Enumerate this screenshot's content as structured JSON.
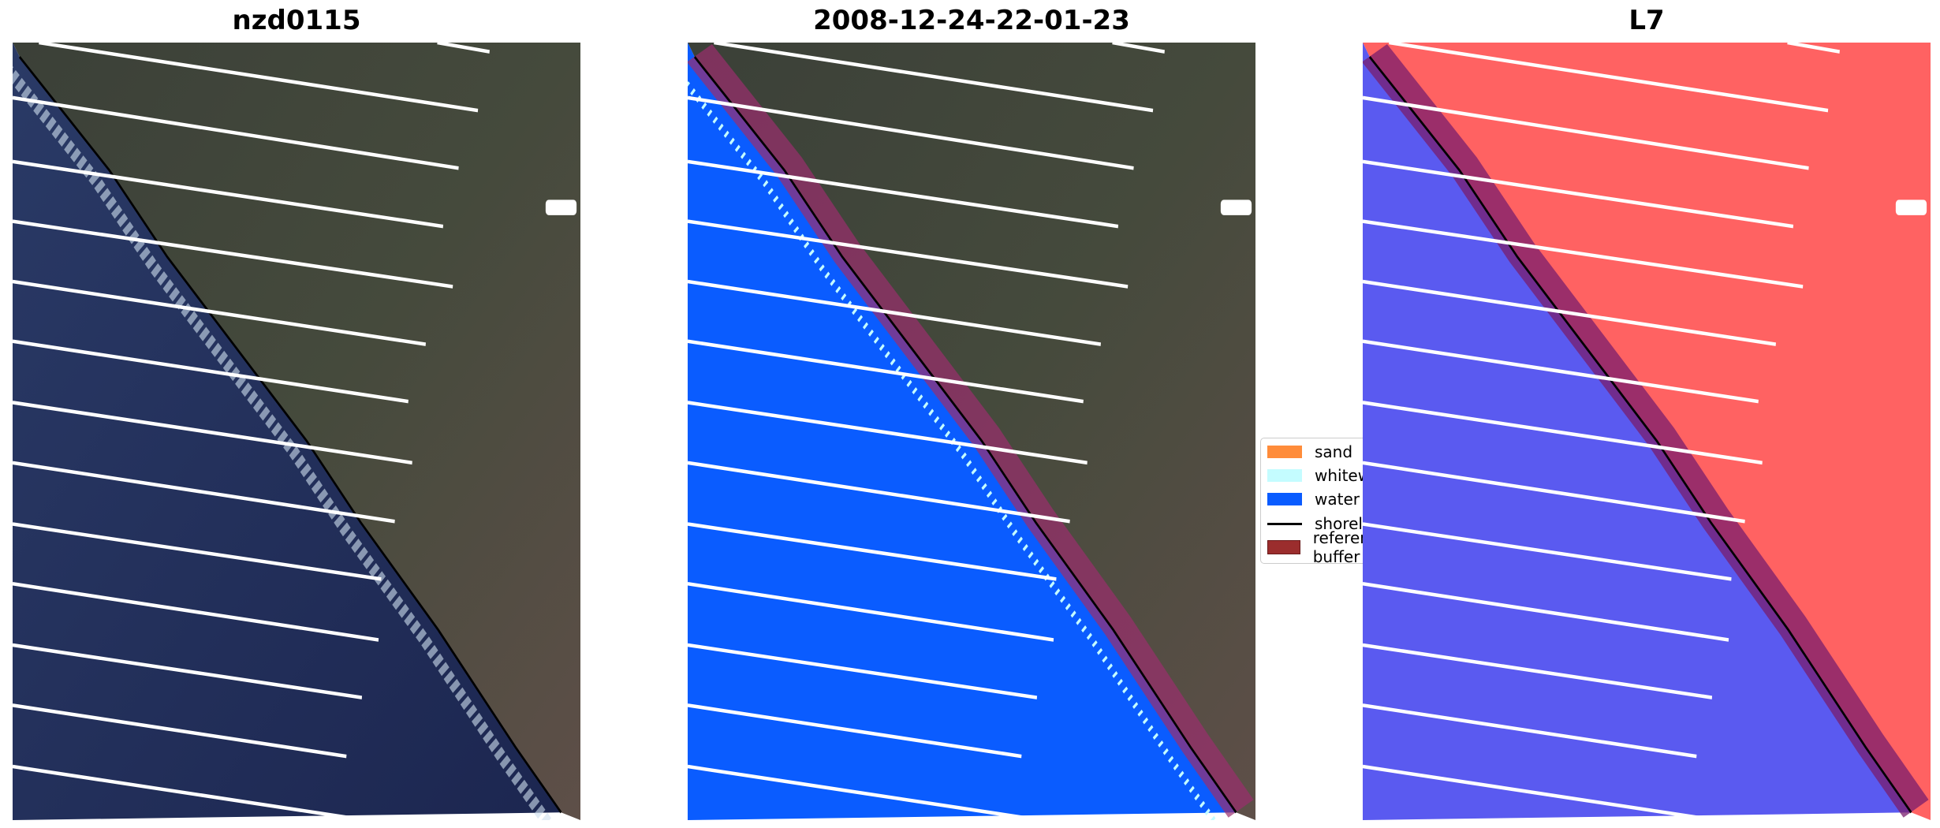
{
  "panels": [
    {
      "title": "nzd0115",
      "kind": "rgb"
    },
    {
      "title": "2008-12-24-22-01-23",
      "kind": "classified"
    },
    {
      "title": "L7",
      "kind": "mndwi"
    }
  ],
  "legend": {
    "items": [
      {
        "label": "sand",
        "color": "#ff8c3a"
      },
      {
        "label": "whitewater",
        "color": "#c4fcff"
      },
      {
        "label": "water",
        "color": "#0a5cff"
      },
      {
        "label": "shoreline",
        "color": "#000000"
      },
      {
        "label": "reference shoreline buffer",
        "color": "#9b2d2d"
      }
    ]
  }
}
